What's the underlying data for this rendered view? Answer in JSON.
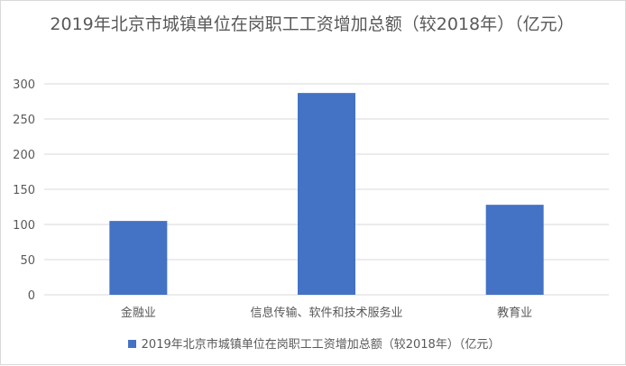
{
  "chart_data": {
    "type": "bar",
    "title": "2019年北京市城镇单位在岗职工工资增加总额（较2018年）（亿元）",
    "categories": [
      "金融业",
      "信息传输、软件和技术服务业",
      "教育业"
    ],
    "series": [
      {
        "name": "2019年北京市城镇单位在岗职工工资增加总额（较2018年）（亿元）",
        "values": [
          105,
          287,
          128
        ],
        "color": "#4472c4"
      }
    ],
    "yticks": [
      "0",
      "50",
      "100",
      "150",
      "200",
      "250",
      "300"
    ],
    "ylim": [
      0,
      300
    ],
    "grid": true,
    "legend": "bottom"
  }
}
